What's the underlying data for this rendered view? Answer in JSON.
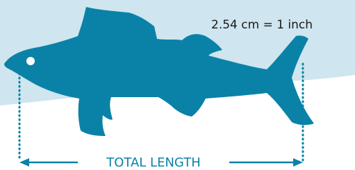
{
  "scale_note": "2.54 cm = 1 inch",
  "measure_label": "TOTAL LENGTH"
}
